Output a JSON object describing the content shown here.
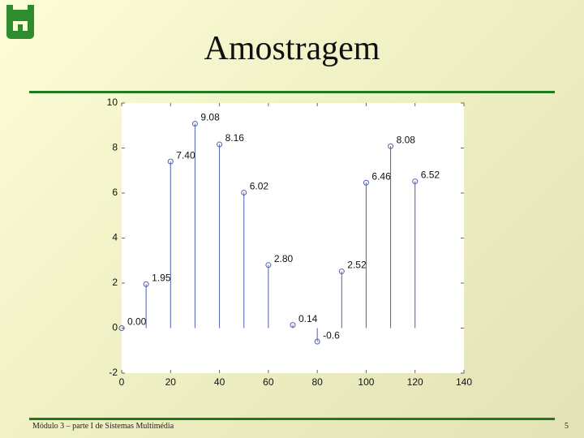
{
  "title": "Amostragem",
  "footer": {
    "left": "Módulo 3 – parte I de Sistemas Multimédia",
    "page": "5"
  },
  "chart_data": {
    "type": "stem",
    "x": [
      0,
      10,
      20,
      30,
      40,
      50,
      60,
      70,
      80,
      90,
      100,
      110,
      120
    ],
    "values": [
      0,
      1.95,
      7.4,
      9.08,
      8.16,
      6.02,
      2.8,
      0.14,
      -0.6,
      2.52,
      6.46,
      8.08,
      6.52
    ],
    "value_labels": [
      "0.00",
      "1.95",
      "7.40",
      "9.08",
      "8.16",
      "6.02",
      "2.80",
      "0.14",
      "-0.6",
      "2.52",
      "6.46",
      "8.08",
      "6.52"
    ],
    "color": "#5060b0",
    "xlim": [
      0,
      140
    ],
    "xticks": [
      0,
      20,
      40,
      60,
      80,
      100,
      120,
      140
    ],
    "ylim": [
      -2,
      10
    ],
    "yticks": [
      -2,
      0,
      2,
      4,
      6,
      8,
      10
    ]
  }
}
